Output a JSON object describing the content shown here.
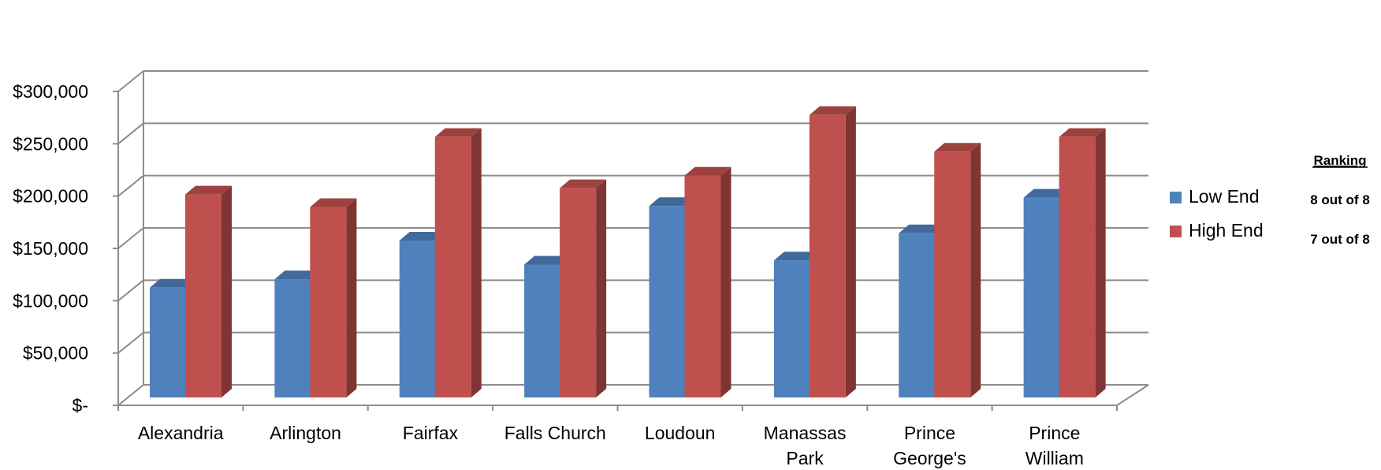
{
  "chart_data": {
    "type": "bar",
    "title": "",
    "xlabel": "",
    "ylabel": "",
    "categories": [
      [
        "Alexandria"
      ],
      [
        "Arlington"
      ],
      [
        "Fairfax"
      ],
      [
        "Falls Church"
      ],
      [
        "Loudoun"
      ],
      [
        "Manassas",
        "Park"
      ],
      [
        "Prince",
        "George's"
      ],
      [
        "Prince",
        "William"
      ]
    ],
    "series": [
      {
        "name": "Low End",
        "color": "#4F81BD",
        "values": [
          105000,
          113000,
          150000,
          127000,
          183000,
          131000,
          157000,
          191000
        ]
      },
      {
        "name": "High End",
        "color": "#C0504D",
        "values": [
          194000,
          182000,
          249000,
          200000,
          212000,
          270000,
          235000,
          249000
        ]
      }
    ],
    "ylim": [
      0,
      300000
    ],
    "y_ticks": [
      {
        "value": 0,
        "label": "$-"
      },
      {
        "value": 50000,
        "label": "$50,000"
      },
      {
        "value": 100000,
        "label": "$100,000"
      },
      {
        "value": 150000,
        "label": "$150,000"
      },
      {
        "value": 200000,
        "label": "$200,000"
      },
      {
        "value": 250000,
        "label": "$250,000"
      },
      {
        "value": 300000,
        "label": "$300,000"
      }
    ],
    "grid": true,
    "three_d": true,
    "legend_position": "right"
  },
  "ranking": {
    "title": "Ranking",
    "values": [
      "8 out of 8",
      "7 out of 8"
    ]
  }
}
